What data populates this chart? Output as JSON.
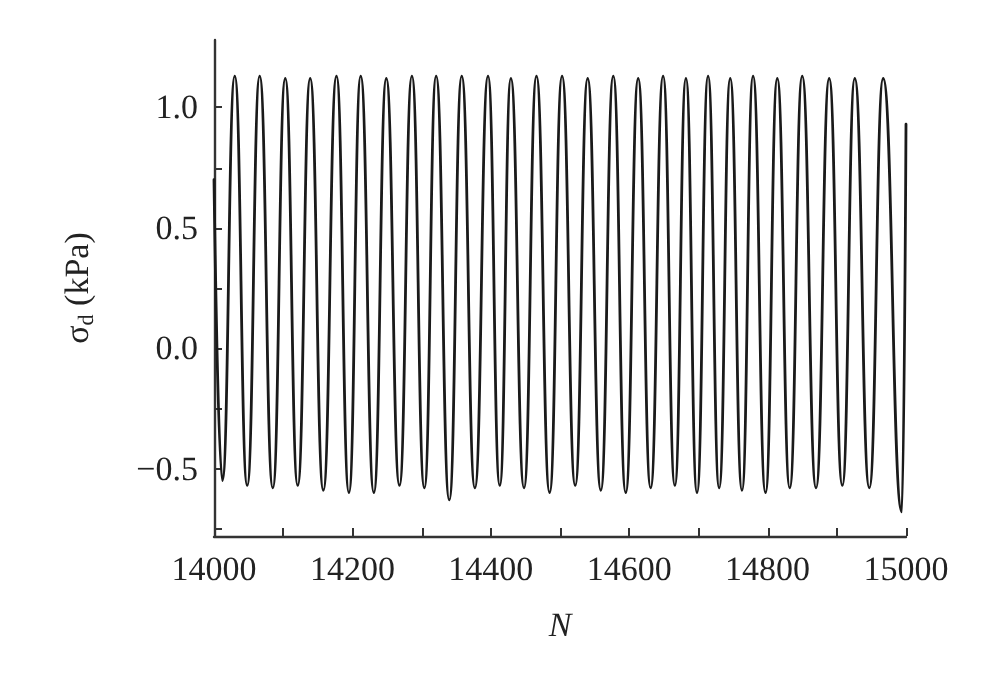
{
  "chart_data": {
    "type": "line",
    "xlabel": "N",
    "ylabel": "σ$_{d}$ (kPa)",
    "xlim": [
      14000,
      15000
    ],
    "xticks": [
      14000,
      {
        "value": 14100,
        "label": null
      },
      14200,
      {
        "value": 14300,
        "label": null
      },
      14400,
      {
        "value": 14500,
        "label": null
      },
      14600,
      {
        "value": 14700,
        "label": null
      },
      14800,
      {
        "value": 14900,
        "label": null
      },
      15000
    ],
    "ylim": [
      -0.78,
      1.28
    ],
    "yticks": [
      {
        "value": -0.75,
        "label": null
      },
      {
        "value": -0.5,
        "label": "−0.5"
      },
      {
        "value": -0.25,
        "label": null
      },
      {
        "value": 0,
        "label": "0.0"
      },
      {
        "value": 0.25,
        "label": null
      },
      {
        "value": 0.5,
        "label": "0.5"
      },
      {
        "value": 0.75,
        "label": null
      },
      {
        "value": 1,
        "label": "1.0"
      }
    ],
    "grid": false,
    "marker": "none",
    "line_style": "solid",
    "series": [
      {
        "color": "#1a1a1a",
        "x": [
          14000,
          14012,
          14030,
          14048,
          14066,
          14085,
          14103,
          14121,
          14139,
          14158,
          14177,
          14195,
          14212,
          14231,
          14249,
          14268,
          14286,
          14304,
          14321,
          14340,
          14358,
          14377,
          14396,
          14413,
          14429,
          14448,
          14466,
          14485,
          14503,
          14522,
          14540,
          14559,
          14577,
          14595,
          14613,
          14631,
          14649,
          14666,
          14682,
          14698,
          14714,
          14730,
          14746,
          14763,
          14779,
          14797,
          14814,
          14832,
          14850,
          14870,
          14889,
          14908,
          14926,
          14947,
          14967,
          14994,
          15000
        ],
        "values": [
          0.7,
          -0.55,
          1.13,
          -0.57,
          1.13,
          -0.58,
          1.12,
          -0.57,
          1.12,
          -0.59,
          1.13,
          -0.6,
          1.13,
          -0.6,
          1.12,
          -0.57,
          1.13,
          -0.58,
          1.13,
          -0.63,
          1.13,
          -0.58,
          1.13,
          -0.57,
          1.12,
          -0.58,
          1.13,
          -0.6,
          1.13,
          -0.57,
          1.12,
          -0.59,
          1.13,
          -0.6,
          1.12,
          -0.58,
          1.13,
          -0.57,
          1.12,
          -0.6,
          1.13,
          -0.58,
          1.12,
          -0.59,
          1.13,
          -0.6,
          1.12,
          -0.58,
          1.13,
          -0.58,
          1.12,
          -0.57,
          1.12,
          -0.58,
          1.12,
          -0.68,
          0.93
        ]
      }
    ]
  }
}
